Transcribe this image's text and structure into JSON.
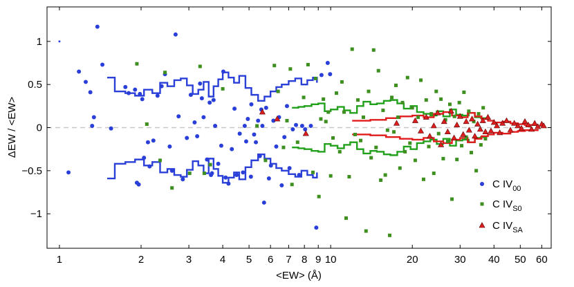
{
  "chart_data": {
    "type": "scatter",
    "title": "",
    "xlabel": "<EW> (Å)",
    "ylabel": "ΔEW / <EW>",
    "xscale": "log",
    "xlim": [
      0.9,
      65
    ],
    "ylim": [
      -1.4,
      1.4
    ],
    "xticks": [
      1,
      2,
      3,
      4,
      5,
      6,
      7,
      8,
      9,
      10,
      20,
      30,
      40,
      50,
      60
    ],
    "yticks": [
      -1,
      -0.5,
      0,
      0.5,
      1
    ],
    "ytick_labels": [
      "−1",
      "−0.5",
      "0",
      "0.5",
      "1"
    ],
    "grid": false,
    "reference_line": {
      "y": 0,
      "style": "dashed",
      "color": "#c8c8c8"
    },
    "legend": {
      "placement": "bottom-right"
    },
    "series": [
      {
        "name_main": "C IV",
        "name_sub": "00",
        "marker": "circle",
        "color": "#2a3fd8",
        "points": [
          [
            1.0,
            1.0
          ],
          [
            1.08,
            -0.52
          ],
          [
            1.18,
            0.65
          ],
          [
            1.25,
            0.53
          ],
          [
            1.3,
            0.41
          ],
          [
            1.32,
            0.02
          ],
          [
            1.34,
            0.12
          ],
          [
            1.38,
            1.17
          ],
          [
            1.44,
            0.73
          ],
          [
            1.55,
            -0.01
          ],
          [
            1.75,
            0.47
          ],
          [
            1.8,
            0.4
          ],
          [
            1.9,
            0.44
          ],
          [
            1.93,
            -0.64
          ],
          [
            1.96,
            -0.66
          ],
          [
            1.98,
            0.39
          ],
          [
            2.02,
            0.33
          ],
          [
            2.05,
            -0.35
          ],
          [
            2.12,
            -0.17
          ],
          [
            2.15,
            -0.45
          ],
          [
            2.22,
            -0.15
          ],
          [
            2.3,
            0.37
          ],
          [
            2.38,
            0.48
          ],
          [
            2.45,
            0.62
          ],
          [
            2.55,
            -0.22
          ],
          [
            2.6,
            -0.5
          ],
          [
            2.68,
            1.08
          ],
          [
            2.75,
            0.13
          ],
          [
            2.85,
            -0.6
          ],
          [
            2.95,
            -0.12
          ],
          [
            3.05,
            0.38
          ],
          [
            3.15,
            0.06
          ],
          [
            3.22,
            -0.1
          ],
          [
            3.3,
            0.51
          ],
          [
            3.35,
            0.34
          ],
          [
            3.4,
            0.12
          ],
          [
            3.5,
            -0.37
          ],
          [
            3.58,
            0.29
          ],
          [
            3.62,
            -0.55
          ],
          [
            3.65,
            -0.53
          ],
          [
            3.7,
            0.32
          ],
          [
            3.75,
            0.02
          ],
          [
            3.85,
            -0.42
          ],
          [
            3.95,
            -0.21
          ],
          [
            4.02,
            0.65
          ],
          [
            4.1,
            -0.58
          ],
          [
            4.2,
            -0.65
          ],
          [
            4.32,
            -0.25
          ],
          [
            4.42,
            0.22
          ],
          [
            4.5,
            -0.55
          ],
          [
            4.62,
            -0.07
          ],
          [
            4.75,
            -0.52
          ],
          [
            4.82,
            0.02
          ],
          [
            4.88,
            -0.16
          ],
          [
            4.95,
            0.1
          ],
          [
            5.08,
            -0.57
          ],
          [
            5.1,
            0.27
          ],
          [
            5.22,
            -0.08
          ],
          [
            5.3,
            -0.17
          ],
          [
            5.4,
            0.08
          ],
          [
            5.48,
            -0.33
          ],
          [
            5.55,
            0.21
          ],
          [
            5.6,
            0.02
          ],
          [
            5.68,
            -0.87
          ],
          [
            5.78,
            0.23
          ],
          [
            5.92,
            -0.59
          ],
          [
            6.02,
            -0.44
          ],
          [
            6.15,
            0.08
          ],
          [
            6.3,
            -0.22
          ],
          [
            6.45,
            0.12
          ],
          [
            6.6,
            -0.67
          ],
          [
            6.75,
            -0.11
          ],
          [
            6.9,
            0.25
          ],
          [
            7.05,
            -0.47
          ],
          [
            7.25,
            -0.02
          ],
          [
            7.45,
            0.03
          ],
          [
            7.65,
            -0.55
          ],
          [
            7.85,
            0.02
          ],
          [
            8.05,
            -0.02
          ],
          [
            8.45,
            0.02
          ],
          [
            8.85,
            -1.16
          ],
          [
            9.25,
            0.61
          ],
          [
            9.75,
            0.75
          ],
          [
            9.95,
            0.62
          ]
        ]
      },
      {
        "name_main": "C IV",
        "name_sub": "S0",
        "marker": "square",
        "color": "#3d8f1f",
        "points": [
          [
            1.93,
            0.74
          ],
          [
            2.1,
            0.04
          ],
          [
            2.35,
            -0.38
          ],
          [
            2.45,
            0.64
          ],
          [
            2.6,
            -0.7
          ],
          [
            3.02,
            -0.53
          ],
          [
            3.3,
            0.71
          ],
          [
            3.42,
            -0.53
          ],
          [
            3.6,
            -0.43
          ],
          [
            4.0,
            0.45
          ],
          [
            5.35,
            0.02
          ],
          [
            5.75,
            -0.38
          ],
          [
            6.2,
            0.72
          ],
          [
            6.4,
            0.42
          ],
          [
            6.7,
            -0.23
          ],
          [
            6.9,
            0.08
          ],
          [
            7.1,
            0.68
          ],
          [
            7.2,
            -0.66
          ],
          [
            7.55,
            -0.17
          ],
          [
            7.95,
            0.35
          ],
          [
            8.25,
            0.73
          ],
          [
            8.6,
            -0.52
          ],
          [
            8.8,
            0.57
          ],
          [
            9.05,
            -0.8
          ],
          [
            9.2,
            0.1
          ],
          [
            9.4,
            0.33
          ],
          [
            9.6,
            0.07
          ],
          [
            9.8,
            0.18
          ],
          [
            10.0,
            -0.56
          ],
          [
            10.2,
            -0.12
          ],
          [
            10.5,
            0.4
          ],
          [
            10.8,
            -0.28
          ],
          [
            11.0,
            0.53
          ],
          [
            11.2,
            0.18
          ],
          [
            11.4,
            -1.05
          ],
          [
            11.7,
            -0.57
          ],
          [
            12.0,
            0.91
          ],
          [
            12.3,
            -0.08
          ],
          [
            12.6,
            0.32
          ],
          [
            12.9,
            -0.15
          ],
          [
            13.2,
            0.12
          ],
          [
            13.5,
            -1.2
          ],
          [
            13.8,
            0.42
          ],
          [
            14.1,
            -0.35
          ],
          [
            14.4,
            0.9
          ],
          [
            14.7,
            -0.23
          ],
          [
            15.0,
            0.66
          ],
          [
            15.3,
            -0.61
          ],
          [
            15.6,
            0.2
          ],
          [
            15.9,
            -0.55
          ],
          [
            16.2,
            -0.03
          ],
          [
            16.5,
            -1.25
          ],
          [
            16.8,
            0.35
          ],
          [
            17.1,
            -0.05
          ],
          [
            17.4,
            0.49
          ],
          [
            17.7,
            0.12
          ],
          [
            18.0,
            -0.47
          ],
          [
            18.4,
            0.29
          ],
          [
            18.8,
            -0.28
          ],
          [
            19.2,
            0.58
          ],
          [
            19.6,
            -0.18
          ],
          [
            20.0,
            0.23
          ],
          [
            20.5,
            -0.38
          ],
          [
            21.0,
            0.12
          ],
          [
            21.5,
            0.55
          ],
          [
            22.0,
            -0.6
          ],
          [
            22.5,
            0.32
          ],
          [
            23.0,
            -0.22
          ],
          [
            23.5,
            0.16
          ],
          [
            24.0,
            -0.53
          ],
          [
            24.5,
            0.42
          ],
          [
            25.0,
            -0.07
          ],
          [
            25.5,
            0.33
          ],
          [
            26.0,
            -0.36
          ],
          [
            26.5,
            0.09
          ],
          [
            27.0,
            -0.16
          ],
          [
            27.5,
            0.27
          ],
          [
            28.0,
            -0.83
          ],
          [
            28.6,
            0.13
          ],
          [
            29.2,
            -0.37
          ],
          [
            29.8,
            0.29
          ],
          [
            30.4,
            -0.21
          ],
          [
            31.0,
            0.41
          ],
          [
            31.6,
            -0.11
          ],
          [
            32.3,
            0.19
          ],
          [
            33.0,
            -0.29
          ],
          [
            33.7,
            0.07
          ],
          [
            34.4,
            -0.5
          ],
          [
            35.1,
            0.16
          ],
          [
            35.8,
            -0.2
          ],
          [
            36.5,
            0.23
          ],
          [
            37.2,
            -0.13
          ]
        ]
      },
      {
        "name_main": "C IV",
        "name_sub": "SA",
        "marker": "triangle",
        "color": "#dd1e1e",
        "points": [
          [
            5.6,
            0.18
          ],
          [
            6.35,
            0.1
          ],
          [
            8.1,
            -0.07
          ],
          [
            17.5,
            0.05
          ],
          [
            20.5,
            0.08
          ],
          [
            21.5,
            -0.04
          ],
          [
            22.5,
            0.12
          ],
          [
            23.2,
            -0.1
          ],
          [
            24.0,
            0.02
          ],
          [
            24.8,
            0.17
          ],
          [
            25.5,
            -0.2
          ],
          [
            26.2,
            0.07
          ],
          [
            27.0,
            -0.05
          ],
          [
            27.8,
            0.19
          ],
          [
            28.5,
            -0.12
          ],
          [
            29.2,
            0.03
          ],
          [
            30.0,
            0.13
          ],
          [
            30.8,
            -0.08
          ],
          [
            31.6,
            0.07
          ],
          [
            32.4,
            -0.03
          ],
          [
            33.2,
            0.1
          ],
          [
            34.0,
            -0.1
          ],
          [
            34.8,
            0.04
          ],
          [
            35.6,
            -0.02
          ],
          [
            36.4,
            0.08
          ],
          [
            37.2,
            -0.05
          ],
          [
            38.0,
            0.12
          ],
          [
            39.0,
            -0.04
          ],
          [
            40.0,
            0.06
          ],
          [
            41.0,
            0.02
          ],
          [
            42.0,
            -0.06
          ],
          [
            43.0,
            0.05
          ],
          [
            44.5,
            0.08
          ],
          [
            46.0,
            -0.03
          ],
          [
            47.5,
            0.05
          ],
          [
            49.0,
            0.02
          ],
          [
            50.5,
            -0.01
          ],
          [
            52.0,
            0.07
          ],
          [
            53.5,
            0.03
          ],
          [
            55.0,
            -0.02
          ],
          [
            56.5,
            0.05
          ],
          [
            58.0,
            0.01
          ],
          [
            60.0,
            0.04
          ],
          [
            61.0,
            0.02
          ]
        ]
      }
    ],
    "envelope_lines": [
      {
        "color": "#2a3fd8",
        "x": [
          1.5,
          1.6,
          1.75,
          1.9,
          2.05,
          2.2,
          2.35,
          2.5,
          2.65,
          2.8,
          2.95,
          3.1,
          3.25,
          3.4,
          3.55,
          3.7,
          3.85,
          4.0,
          4.2,
          4.4,
          4.6,
          4.85,
          5.1,
          5.4,
          5.7,
          6.0,
          6.3,
          6.6,
          7.0,
          7.4,
          7.8,
          8.2,
          8.6,
          8.9
        ],
        "upper": [
          0.58,
          0.42,
          0.4,
          0.37,
          0.44,
          0.4,
          0.52,
          0.48,
          0.55,
          0.57,
          0.49,
          0.39,
          0.44,
          0.53,
          0.36,
          0.48,
          0.56,
          0.64,
          0.58,
          0.52,
          0.6,
          0.46,
          0.38,
          0.31,
          0.36,
          0.42,
          0.47,
          0.5,
          0.54,
          0.57,
          0.5,
          0.55,
          0.58,
          0.52
        ],
        "lower": [
          -0.59,
          -0.42,
          -0.4,
          -0.37,
          -0.44,
          -0.4,
          -0.52,
          -0.48,
          -0.55,
          -0.57,
          -0.49,
          -0.39,
          -0.44,
          -0.53,
          -0.36,
          -0.48,
          -0.56,
          -0.64,
          -0.58,
          -0.52,
          -0.6,
          -0.46,
          -0.38,
          -0.31,
          -0.36,
          -0.42,
          -0.47,
          -0.5,
          -0.54,
          -0.57,
          -0.5,
          -0.55,
          -0.58,
          -0.52
        ]
      },
      {
        "color": "#21a01b",
        "x": [
          7.2,
          7.6,
          8.0,
          8.5,
          9.0,
          9.5,
          10.0,
          10.6,
          11.2,
          11.8,
          12.5,
          13.2,
          14.0,
          14.8,
          15.7,
          16.6,
          17.6,
          18.6,
          19.7,
          20.8,
          22.0,
          23.3,
          24.6,
          26.0,
          27.5,
          29.0,
          30.6,
          32.3,
          34.0,
          35.8,
          37.5
        ],
        "upper": [
          0.23,
          0.24,
          0.25,
          0.27,
          0.28,
          0.19,
          0.21,
          0.24,
          0.2,
          0.17,
          0.25,
          0.3,
          0.27,
          0.28,
          0.31,
          0.32,
          0.28,
          0.22,
          0.25,
          0.18,
          0.16,
          0.14,
          0.19,
          0.13,
          0.21,
          0.15,
          0.14,
          0.17,
          0.12,
          0.11,
          0.1
        ],
        "lower": [
          -0.23,
          -0.24,
          -0.25,
          -0.27,
          -0.28,
          -0.19,
          -0.21,
          -0.24,
          -0.2,
          -0.17,
          -0.25,
          -0.3,
          -0.27,
          -0.28,
          -0.31,
          -0.32,
          -0.28,
          -0.22,
          -0.25,
          -0.18,
          -0.16,
          -0.14,
          -0.19,
          -0.13,
          -0.21,
          -0.15,
          -0.14,
          -0.17,
          -0.12,
          -0.11,
          -0.1
        ]
      },
      {
        "color": "#e01b1b",
        "x": [
          12.0,
          14.0,
          16.0,
          18.0,
          20.0,
          22.0,
          24.0,
          26.0,
          28.0,
          30.0,
          32.0,
          34.0,
          36.0,
          38.0,
          40.0,
          43.0,
          46.0,
          49.0,
          52.0,
          55.0,
          58.0
        ],
        "upper": [
          0.08,
          0.09,
          0.11,
          0.13,
          0.14,
          0.12,
          0.16,
          0.18,
          0.14,
          0.12,
          0.17,
          0.13,
          0.1,
          0.08,
          0.06,
          0.07,
          0.05,
          0.04,
          0.03,
          0.03,
          0.02
        ],
        "lower": [
          -0.08,
          -0.09,
          -0.11,
          -0.13,
          -0.14,
          -0.12,
          -0.16,
          -0.18,
          -0.14,
          -0.12,
          -0.17,
          -0.13,
          -0.1,
          -0.08,
          -0.06,
          -0.07,
          -0.05,
          -0.04,
          -0.03,
          -0.03,
          -0.02
        ]
      }
    ]
  }
}
